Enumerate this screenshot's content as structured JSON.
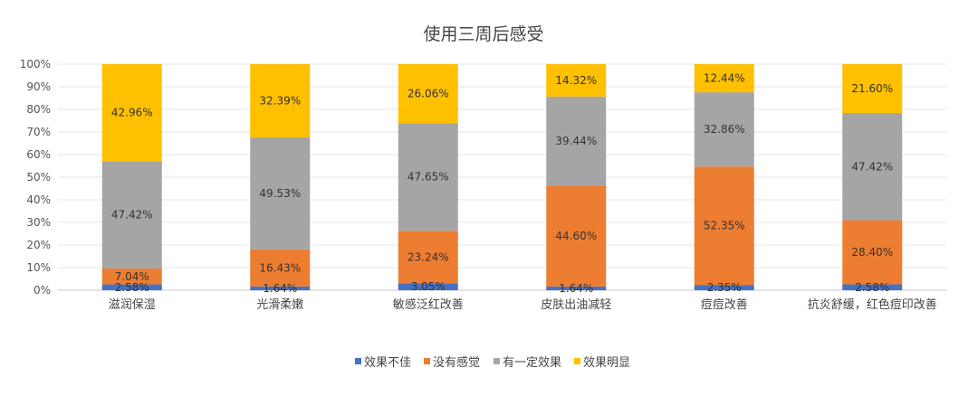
{
  "chart_data": {
    "type": "bar",
    "stacked": true,
    "percent_stacked": true,
    "title": "使用三周后感受",
    "categories": [
      "滋润保湿",
      "光滑柔嫩",
      "敏感泛红改善",
      "皮肤出油减轻",
      "痘痘改善",
      "抗炎舒缓，红色痘印改善"
    ],
    "series": [
      {
        "name": "效果不佳",
        "color": "#4472C4",
        "values": [
          2.58,
          1.64,
          3.05,
          1.64,
          2.35,
          2.58
        ],
        "labels": [
          "2.58%",
          "1.64%",
          "3.05%",
          "1.64%",
          "2.35%",
          "2.58%"
        ]
      },
      {
        "name": "没有感觉",
        "color": "#ED7D31",
        "values": [
          7.04,
          16.43,
          23.24,
          44.6,
          52.35,
          28.4
        ],
        "labels": [
          "7.04%",
          "16.43%",
          "23.24%",
          "44.60%",
          "52.35%",
          "28.40%"
        ]
      },
      {
        "name": "有一定效果",
        "color": "#A5A5A5",
        "values": [
          47.42,
          49.53,
          47.65,
          39.44,
          32.86,
          47.42
        ],
        "labels": [
          "47.42%",
          "49.53%",
          "47.65%",
          "39.44%",
          "32.86%",
          "47.42%"
        ]
      },
      {
        "name": "效果明显",
        "color": "#FFC000",
        "values": [
          42.96,
          32.39,
          26.06,
          14.32,
          12.44,
          21.6
        ],
        "labels": [
          "42.96%",
          "32.39%",
          "26.06%",
          "14.32%",
          "12.44%",
          "21.60%"
        ]
      }
    ],
    "yticks": [
      "0%",
      "10%",
      "20%",
      "30%",
      "40%",
      "50%",
      "60%",
      "70%",
      "80%",
      "90%",
      "100%"
    ],
    "ylim": [
      0,
      100
    ],
    "grid": true,
    "legend_position": "bottom"
  }
}
